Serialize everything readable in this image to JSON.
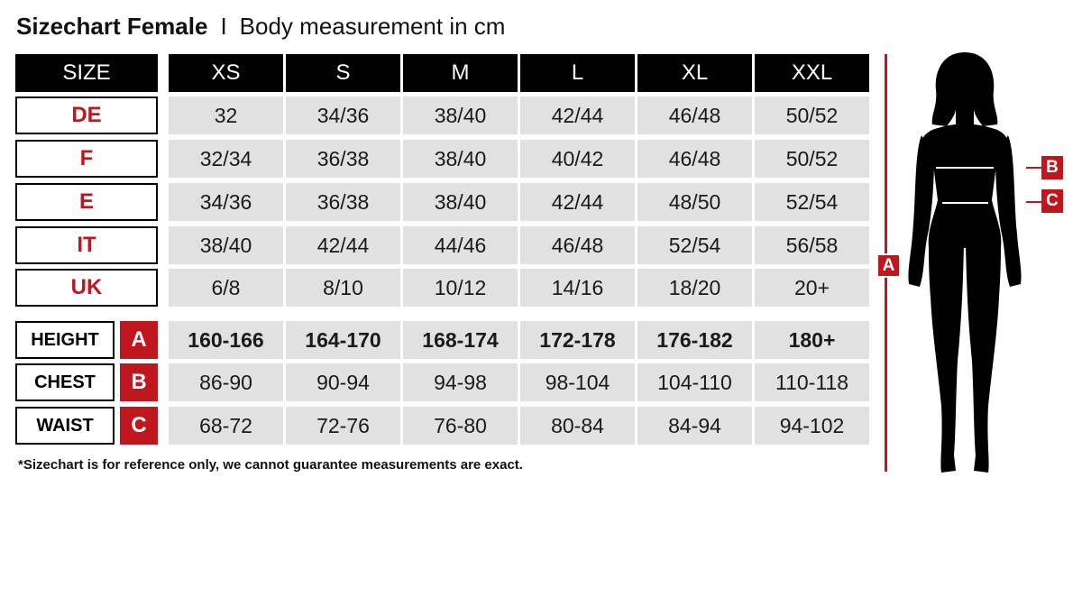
{
  "title": {
    "bold": "Sizechart Female",
    "separator": "I",
    "subtitle": "Body measurement in cm"
  },
  "colors": {
    "accent": "#c0161e",
    "header_bg": "#000000",
    "cell_bg": "#e1e1e1"
  },
  "header": {
    "label": "SIZE",
    "sizes": [
      "XS",
      "S",
      "M",
      "L",
      "XL",
      "XXL"
    ]
  },
  "conversion_rows": [
    {
      "label": "DE",
      "values": [
        "32",
        "34/36",
        "38/40",
        "42/44",
        "46/48",
        "50/52"
      ]
    },
    {
      "label": "F",
      "values": [
        "32/34",
        "36/38",
        "38/40",
        "40/42",
        "46/48",
        "50/52"
      ]
    },
    {
      "label": "E",
      "values": [
        "34/36",
        "36/38",
        "38/40",
        "42/44",
        "48/50",
        "52/54"
      ]
    },
    {
      "label": "IT",
      "values": [
        "38/40",
        "42/44",
        "44/46",
        "46/48",
        "52/54",
        "56/58"
      ]
    },
    {
      "label": "UK",
      "values": [
        "6/8",
        "8/10",
        "10/12",
        "14/16",
        "18/20",
        "20+"
      ]
    }
  ],
  "measurement_rows": [
    {
      "label": "HEIGHT",
      "badge": "A",
      "bold": true,
      "values": [
        "160-166",
        "164-170",
        "168-174",
        "172-178",
        "176-182",
        "180+"
      ]
    },
    {
      "label": "CHEST",
      "badge": "B",
      "bold": false,
      "values": [
        "86-90",
        "90-94",
        "94-98",
        "98-104",
        "104-110",
        "110-118"
      ]
    },
    {
      "label": "WAIST",
      "badge": "C",
      "bold": false,
      "values": [
        "68-72",
        "72-76",
        "76-80",
        "80-84",
        "84-94",
        "94-102"
      ]
    }
  ],
  "note": "*Sizechart is for reference only, we cannot guarantee measurements are exact.",
  "figure": {
    "height_marker": "A",
    "chest_marker": "B",
    "waist_marker": "C"
  }
}
